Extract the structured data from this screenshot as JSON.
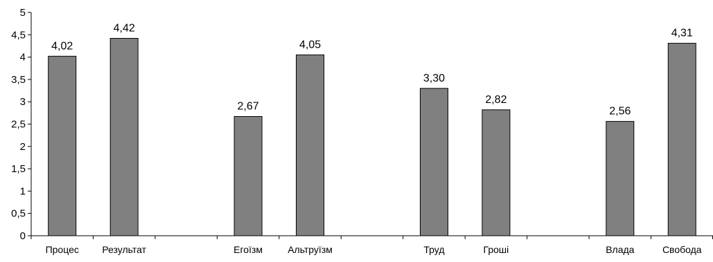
{
  "chart_data": {
    "type": "bar",
    "categories": [
      "Процес",
      "Результат",
      "",
      "Егоїзм",
      "Альтруїзм",
      "",
      "Труд",
      "Гроші",
      "",
      "Влада",
      "Свобода"
    ],
    "series": [
      {
        "values": [
          4.02,
          4.42,
          null,
          2.67,
          4.05,
          null,
          3.3,
          2.82,
          null,
          2.56,
          4.31
        ],
        "labels": [
          "4,02",
          "4,42",
          "",
          "2,67",
          "4,05",
          "",
          "3,30",
          "2,82",
          "",
          "2,56",
          "4,31"
        ]
      }
    ],
    "y_ticks": [
      "0",
      "0,5",
      "1",
      "1,5",
      "2",
      "2,5",
      "3",
      "3,5",
      "4",
      "4,5",
      "5"
    ],
    "ylim": [
      0,
      5
    ],
    "title": "",
    "xlabel": "",
    "ylabel": "",
    "grid": false,
    "legend": "none",
    "bar_color": "#808080",
    "bar_edge_color": "#000000"
  }
}
